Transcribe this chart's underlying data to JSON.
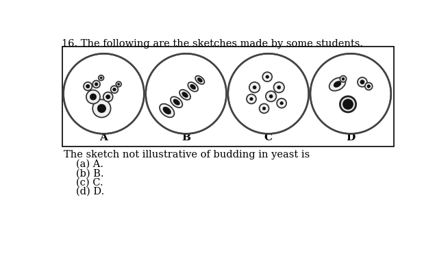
{
  "title": "16. The following are the sketches made by some students.",
  "question": "The sketch not illustrative of budding in yeast is",
  "options": [
    "(a) A.",
    "(b) B.",
    "(c) C.",
    "(d) D."
  ],
  "labels": [
    "A",
    "B",
    "C",
    "D"
  ],
  "bg_color": "#ffffff",
  "text_color": "#000000",
  "title_fontsize": 10.5,
  "label_fontsize": 11,
  "question_fontsize": 10.5,
  "option_fontsize": 10.5
}
